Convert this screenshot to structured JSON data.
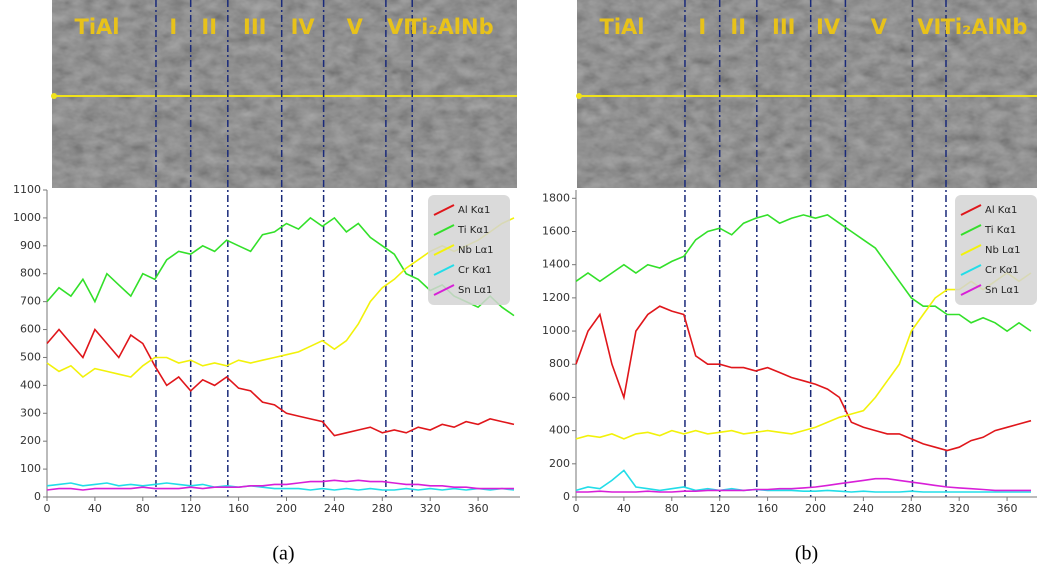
{
  "chart_data": [
    {
      "type": "line",
      "caption": "(a)",
      "zones": [
        "TiAl",
        "I",
        "II",
        "III",
        "IV",
        "V",
        "VI",
        "Ti₂AlNb"
      ],
      "boundaries": [
        91,
        120,
        151,
        196,
        231,
        283,
        305
      ],
      "x": [
        0,
        10,
        20,
        30,
        40,
        50,
        60,
        70,
        80,
        90,
        100,
        110,
        120,
        130,
        140,
        150,
        160,
        170,
        180,
        190,
        200,
        210,
        220,
        230,
        240,
        250,
        260,
        270,
        280,
        290,
        300,
        310,
        320,
        330,
        340,
        350,
        360,
        370,
        380,
        390
      ],
      "xlim": [
        0,
        395
      ],
      "xticks": [
        0,
        40,
        80,
        120,
        160,
        200,
        240,
        280,
        320,
        360
      ],
      "ylim": [
        0,
        1100
      ],
      "yticks": [
        0,
        100,
        200,
        300,
        400,
        500,
        600,
        700,
        800,
        900,
        1000,
        1100
      ],
      "series": [
        {
          "name": "Al Kα1",
          "color": "#e0161b",
          "values": [
            550,
            600,
            550,
            500,
            600,
            550,
            500,
            580,
            550,
            470,
            400,
            430,
            380,
            420,
            400,
            430,
            390,
            380,
            340,
            330,
            300,
            290,
            280,
            270,
            220,
            230,
            240,
            250,
            230,
            240,
            230,
            250,
            240,
            260,
            250,
            270,
            260,
            280,
            270,
            260
          ]
        },
        {
          "name": "Ti Kα1",
          "color": "#33e02a",
          "values": [
            700,
            750,
            720,
            780,
            700,
            800,
            760,
            720,
            800,
            780,
            850,
            880,
            870,
            900,
            880,
            920,
            900,
            880,
            940,
            950,
            980,
            960,
            1000,
            970,
            1000,
            950,
            980,
            930,
            900,
            870,
            800,
            780,
            740,
            760,
            720,
            700,
            680,
            720,
            680,
            650
          ]
        },
        {
          "name": "Nb Lα1",
          "color": "#f2f20a",
          "values": [
            480,
            450,
            470,
            430,
            460,
            450,
            440,
            430,
            470,
            500,
            500,
            480,
            490,
            470,
            480,
            470,
            490,
            480,
            490,
            500,
            510,
            520,
            540,
            560,
            530,
            560,
            620,
            700,
            750,
            780,
            820,
            850,
            880,
            900,
            880,
            900,
            920,
            950,
            980,
            1000
          ]
        },
        {
          "name": "Cr Kα1",
          "color": "#22dde8",
          "values": [
            40,
            45,
            50,
            40,
            45,
            50,
            40,
            45,
            40,
            45,
            50,
            45,
            40,
            45,
            35,
            40,
            35,
            40,
            35,
            30,
            30,
            30,
            25,
            30,
            25,
            30,
            25,
            30,
            25,
            25,
            30,
            25,
            30,
            25,
            30,
            25,
            30,
            25,
            30,
            25
          ]
        },
        {
          "name": "Sn Lα1",
          "color": "#d81fd8",
          "values": [
            25,
            30,
            30,
            25,
            30,
            30,
            30,
            30,
            35,
            30,
            30,
            30,
            35,
            30,
            35,
            35,
            35,
            40,
            40,
            45,
            45,
            50,
            55,
            55,
            60,
            55,
            60,
            55,
            55,
            50,
            45,
            45,
            40,
            40,
            35,
            35,
            30,
            30,
            30,
            30
          ]
        }
      ]
    },
    {
      "type": "line",
      "caption": "(b)",
      "zones": [
        "TiAl",
        "I",
        "II",
        "III",
        "IV",
        "V",
        "VI",
        "Ti₂AlNb"
      ],
      "boundaries": [
        91,
        120,
        151,
        196,
        225,
        281,
        309
      ],
      "x": [
        0,
        10,
        20,
        30,
        40,
        50,
        60,
        70,
        80,
        90,
        100,
        110,
        120,
        130,
        140,
        150,
        160,
        170,
        180,
        190,
        200,
        210,
        220,
        230,
        240,
        250,
        260,
        270,
        280,
        290,
        300,
        310,
        320,
        330,
        340,
        350,
        360,
        370,
        380
      ],
      "xlim": [
        0,
        385
      ],
      "xticks": [
        0,
        40,
        80,
        120,
        160,
        200,
        240,
        280,
        320,
        360
      ],
      "ylim": [
        0,
        1850
      ],
      "yticks": [
        0,
        200,
        400,
        600,
        800,
        1000,
        1200,
        1400,
        1600,
        1800
      ],
      "series": [
        {
          "name": "Al Kα1",
          "color": "#e0161b",
          "values": [
            800,
            1000,
            1100,
            800,
            600,
            1000,
            1100,
            1150,
            1120,
            1100,
            850,
            800,
            800,
            780,
            780,
            760,
            780,
            750,
            720,
            700,
            680,
            650,
            600,
            450,
            420,
            400,
            380,
            380,
            350,
            320,
            300,
            280,
            300,
            340,
            360,
            400,
            420,
            440,
            460
          ]
        },
        {
          "name": "Ti Kα1",
          "color": "#33e02a",
          "values": [
            1300,
            1350,
            1300,
            1350,
            1400,
            1350,
            1400,
            1380,
            1420,
            1450,
            1550,
            1600,
            1620,
            1580,
            1650,
            1680,
            1700,
            1650,
            1680,
            1700,
            1680,
            1700,
            1650,
            1600,
            1550,
            1500,
            1400,
            1300,
            1200,
            1150,
            1150,
            1100,
            1100,
            1050,
            1080,
            1050,
            1000,
            1050,
            1000
          ]
        },
        {
          "name": "Nb Lα1",
          "color": "#f2f20a",
          "values": [
            350,
            370,
            360,
            380,
            350,
            380,
            390,
            370,
            400,
            380,
            400,
            380,
            390,
            400,
            380,
            390,
            400,
            390,
            380,
            400,
            420,
            450,
            480,
            500,
            520,
            600,
            700,
            800,
            1000,
            1100,
            1200,
            1250,
            1250,
            1300,
            1250,
            1300,
            1350,
            1300,
            1350
          ]
        },
        {
          "name": "Cr Kα1",
          "color": "#22dde8",
          "values": [
            40,
            60,
            50,
            100,
            160,
            60,
            50,
            40,
            50,
            60,
            40,
            50,
            40,
            50,
            40,
            45,
            40,
            40,
            40,
            35,
            35,
            40,
            35,
            30,
            35,
            30,
            30,
            30,
            35,
            30,
            30,
            30,
            30,
            30,
            30,
            30,
            30,
            30,
            30
          ]
        },
        {
          "name": "Sn Lα1",
          "color": "#d81fd8",
          "values": [
            30,
            30,
            35,
            30,
            30,
            30,
            35,
            30,
            30,
            35,
            35,
            40,
            40,
            40,
            40,
            45,
            45,
            50,
            50,
            55,
            60,
            70,
            80,
            90,
            100,
            110,
            110,
            100,
            90,
            80,
            70,
            60,
            55,
            50,
            45,
            40,
            40,
            40,
            40
          ]
        }
      ]
    }
  ]
}
